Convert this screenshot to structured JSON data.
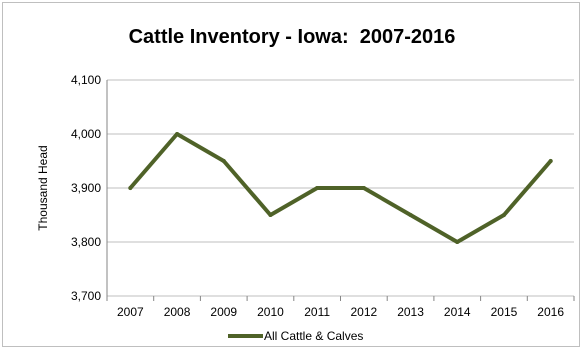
{
  "chart_data": {
    "type": "line",
    "title": "Cattle Inventory - Iowa:  2007-2016",
    "xlabel": "",
    "ylabel": "Thousand Head",
    "categories": [
      "2007",
      "2008",
      "2009",
      "2010",
      "2011",
      "2012",
      "2013",
      "2014",
      "2015",
      "2016"
    ],
    "series": [
      {
        "name": "All Cattle & Calves",
        "values": [
          3900,
          4000,
          3950,
          3850,
          3900,
          3900,
          3850,
          3800,
          3850,
          3950
        ],
        "color": "#4f6228"
      }
    ],
    "ylim": [
      3700,
      4100
    ],
    "yticks": [
      "3,700",
      "3,800",
      "3,900",
      "4,000",
      "4,100"
    ],
    "grid": true,
    "gridlines_color": "#bfbfbf",
    "legend_position": "bottom"
  }
}
